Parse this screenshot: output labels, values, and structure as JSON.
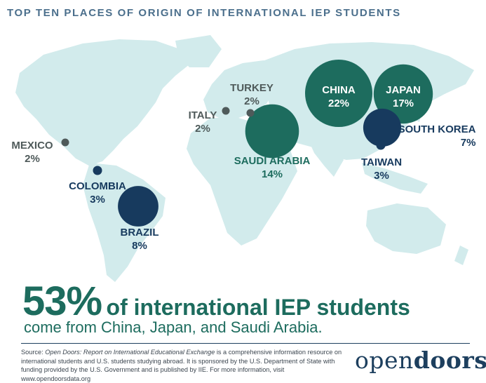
{
  "title": "TOP TEN PLACES OF ORIGIN OF INTERNATIONAL IEP STUDENTS",
  "colors": {
    "land": "#d2ebec",
    "teal": "#1d6c5e",
    "navy": "#173a5e",
    "grey": "#4f5a5a",
    "title": "#4b6f8c"
  },
  "places": [
    {
      "name": "CHINA",
      "pct": "22%",
      "value": 22,
      "color": "teal"
    },
    {
      "name": "JAPAN",
      "pct": "17%",
      "value": 17,
      "color": "teal"
    },
    {
      "name": "SAUDI ARABIA",
      "pct": "14%",
      "value": 14,
      "color": "teal"
    },
    {
      "name": "BRAZIL",
      "pct": "8%",
      "value": 8,
      "color": "navy"
    },
    {
      "name": "SOUTH KOREA",
      "pct": "7%",
      "value": 7,
      "color": "navy"
    },
    {
      "name": "COLOMBIA",
      "pct": "3%",
      "value": 3,
      "color": "navy"
    },
    {
      "name": "TAIWAN",
      "pct": "3%",
      "value": 3,
      "color": "navy"
    },
    {
      "name": "MEXICO",
      "pct": "2%",
      "value": 2,
      "color": "grey"
    },
    {
      "name": "ITALY",
      "pct": "2%",
      "value": 2,
      "color": "grey"
    },
    {
      "name": "TURKEY",
      "pct": "2%",
      "value": 2,
      "color": "grey"
    }
  ],
  "headline": {
    "big": "53%",
    "rest": "of international IEP students",
    "sub": "come from China, Japan, and Saudi Arabia."
  },
  "source": {
    "label": "Source: ",
    "title": "Open Doors: Report on International Educational Exchange",
    "text": " is a comprehensive information resource on international students and U.S. students studying abroad. It is sponsored by the U.S. Department of State with funding provided by the U.S. Government and is published by IIE. For more information, visit www.opendoorsdata.org"
  },
  "logo": {
    "part1": "open",
    "part2": "doors",
    "mark": "®"
  }
}
